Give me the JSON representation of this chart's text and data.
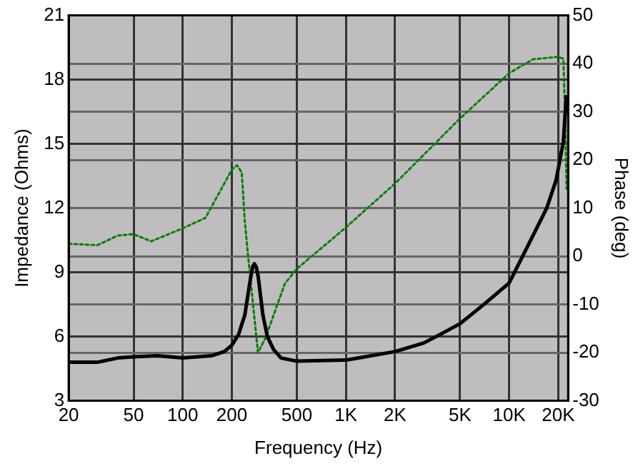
{
  "chart_data": {
    "type": "line",
    "xlabel": "Frequency (Hz)",
    "ylabel": "Impedance (Ohms)",
    "y2label": "Phase (deg)",
    "log": "x",
    "grid": true,
    "legend": false,
    "marker": "none",
    "xlim": [
      20,
      23000
    ],
    "xticks": [
      20,
      50,
      100,
      200,
      500,
      {
        "value": 1000,
        "label": "1K"
      },
      {
        "value": 2000,
        "label": "2K"
      },
      {
        "value": 5000,
        "label": "5K"
      },
      {
        "value": 10000,
        "label": "10K"
      },
      {
        "value": 20000,
        "label": "20K"
      }
    ],
    "ylim": [
      3,
      21
    ],
    "yticks": [
      3,
      6,
      9,
      12,
      15,
      18,
      21
    ],
    "y2lim": [
      -30,
      50
    ],
    "y2ticks": [
      -30,
      -20,
      -10,
      0,
      10,
      20,
      30,
      40,
      50
    ],
    "series": [
      {
        "color": "#000000",
        "line_style": "solid",
        "x": [
          20,
          30,
          40,
          50,
          70,
          100,
          150,
          180,
          200,
          220,
          240,
          260,
          268,
          275,
          282,
          290,
          310,
          330,
          360,
          400,
          500,
          1000,
          2000,
          3000,
          4000,
          5000,
          7000,
          10000,
          14400,
          17000,
          19400,
          21500,
          22400
        ],
        "values": [
          4.8,
          4.8,
          5.0,
          5.05,
          5.1,
          5.0,
          5.1,
          5.3,
          5.6,
          6.1,
          7.0,
          8.7,
          9.25,
          9.4,
          9.25,
          8.8,
          7.0,
          6.0,
          5.4,
          5.0,
          4.85,
          4.9,
          5.3,
          5.7,
          6.2,
          6.6,
          7.5,
          8.5,
          10.9,
          12.0,
          13.3,
          15.1,
          17.2
        ]
      },
      {
        "color": "#008000",
        "line_style": "dotted",
        "axis": "y2",
        "x": [
          20,
          30,
          40,
          50,
          64,
          100,
          138,
          200,
          215,
          230,
          240,
          250,
          289,
          321,
          422,
          500,
          793,
          1000,
          2000,
          5000,
          10000,
          14000,
          20000,
          21500,
          22000,
          22500
        ],
        "values": [
          2.6,
          2.3,
          4.3,
          4.6,
          3.1,
          5.8,
          8,
          18,
          18.9,
          17.4,
          7.4,
          0.9,
          -20,
          -17,
          -5.7,
          -2.6,
          3.1,
          6,
          15.1,
          28.6,
          38,
          40.9,
          41.4,
          41,
          30,
          14
        ]
      }
    ]
  }
}
